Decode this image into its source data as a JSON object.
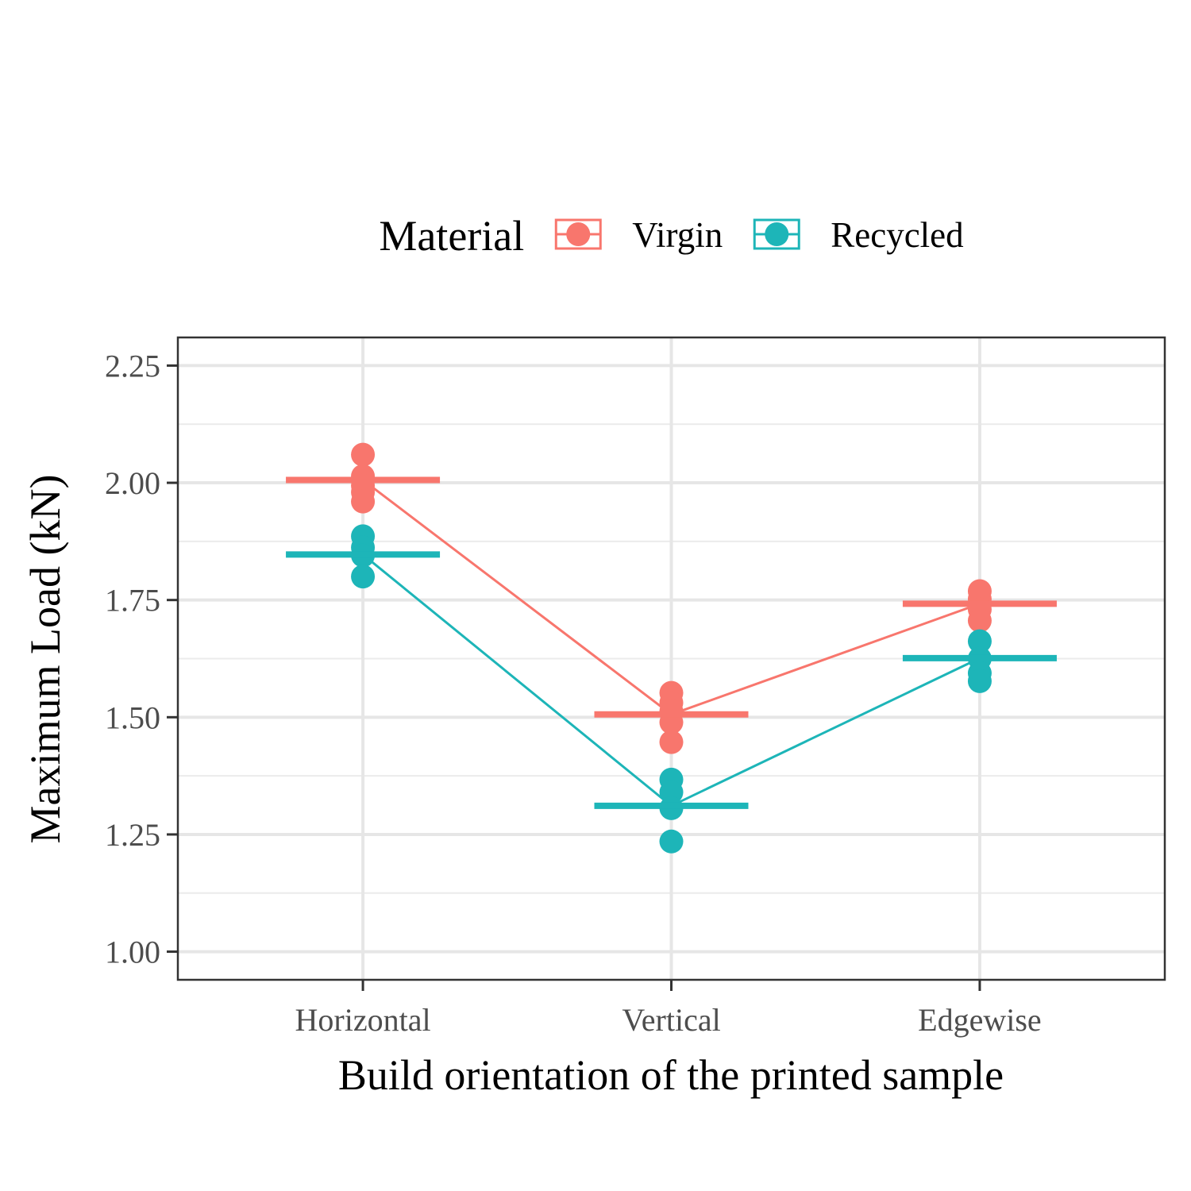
{
  "chart_data": {
    "type": "strip",
    "x_label": "Build orientation of the printed sample",
    "y_label": "Maximum Load (kN)",
    "categories": [
      "Horizontal",
      "Vertical",
      "Edgewise"
    ],
    "legend_title": "Material",
    "legend_position": "top",
    "grid": true,
    "ylim": [
      0.94,
      2.31
    ],
    "yticks": [
      2.25,
      {
        "value": 2,
        "label": "2.00"
      },
      1.75,
      {
        "value": 1.5,
        "label": "1.50"
      },
      1.25,
      {
        "value": 1,
        "label": "1.00"
      }
    ],
    "minor_yticks": [
      1.125,
      1.375,
      1.625,
      1.875,
      2.125
    ],
    "series": [
      {
        "name": "Virgin",
        "color": "#F8766D",
        "values": [
          2.006,
          1.506,
          1.742
        ],
        "points": [
          [
            2.06,
            2.014,
            1.994,
            1.98,
            1.96
          ],
          [
            1.552,
            1.531,
            1.513,
            1.489,
            1.447
          ],
          [
            1.769,
            1.752,
            1.73,
            1.706
          ]
        ]
      },
      {
        "name": "Recycled",
        "color": "#1DB5B8",
        "values": [
          1.847,
          1.311,
          1.626
        ],
        "points": [
          [
            1.886,
            1.862,
            1.845,
            1.8
          ],
          [
            1.367,
            1.34,
            1.306,
            1.235
          ],
          [
            1.662,
            1.625,
            1.594,
            1.577
          ]
        ]
      }
    ]
  }
}
